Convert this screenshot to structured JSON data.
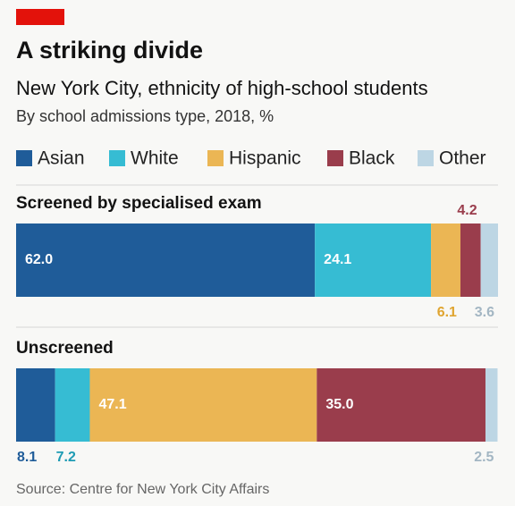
{
  "chart_data": {
    "type": "bar",
    "orientation": "horizontal",
    "stacked": true,
    "title": "A striking divide",
    "subtitle": "New York City, ethnicity of high-school students",
    "description": "By school admissions type, 2018, %",
    "source": "Source: Centre for New York City Affairs",
    "categories": [
      "Screened by specialised exam",
      "Unscreened"
    ],
    "xlim": [
      0,
      100
    ],
    "series": [
      {
        "name": "Asian",
        "color": "#1f5c99",
        "values": [
          62.0,
          8.1
        ],
        "value_labels": [
          "62.0",
          "8.1"
        ]
      },
      {
        "name": "White",
        "color": "#36bcd3",
        "values": [
          24.1,
          7.2
        ],
        "value_labels": [
          "24.1",
          "7.2"
        ]
      },
      {
        "name": "Hispanic",
        "color": "#ebb654",
        "values": [
          6.1,
          47.1
        ],
        "value_labels": [
          "6.1",
          "47.1"
        ]
      },
      {
        "name": "Black",
        "color": "#9a3d4c",
        "values": [
          4.2,
          35.0
        ],
        "value_labels": [
          "4.2",
          "35.0"
        ]
      },
      {
        "name": "Other",
        "color": "#bdd6e4",
        "values": [
          3.6,
          2.5
        ],
        "value_labels": [
          "3.6",
          "2.5"
        ]
      }
    ],
    "legend": "top"
  }
}
